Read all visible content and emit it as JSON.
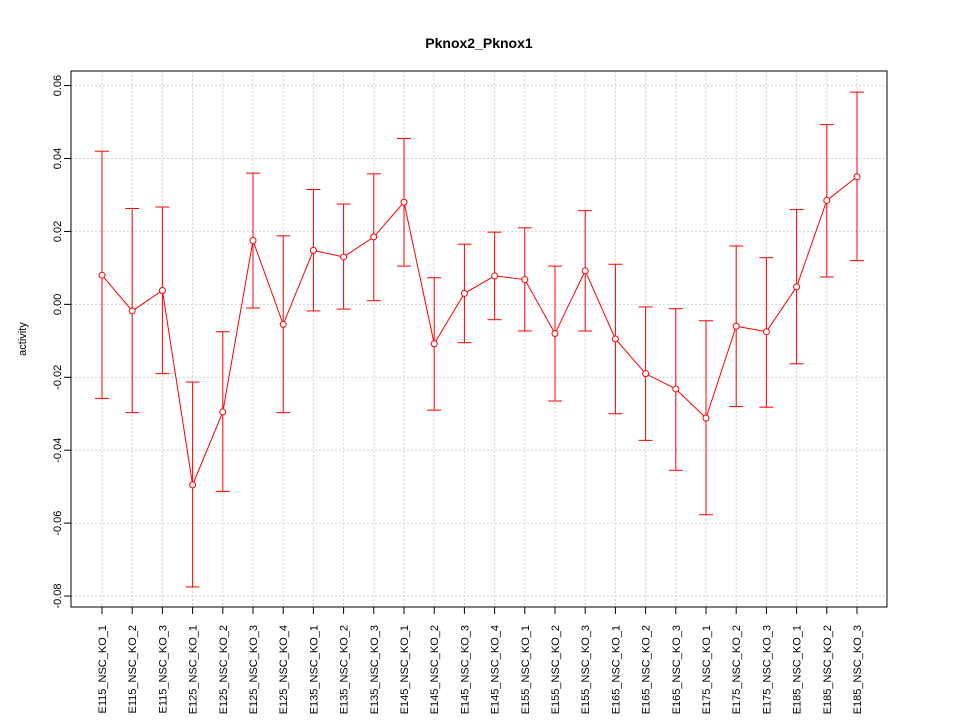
{
  "chart_data": {
    "type": "line",
    "title": "Pknox2_Pknox1",
    "xlabel": "",
    "ylabel": "activity",
    "ylim": [
      -0.083,
      0.064
    ],
    "yticks": [
      -0.08,
      -0.06,
      -0.04,
      -0.02,
      0.0,
      0.02,
      0.04,
      0.06
    ],
    "ytick_labels": [
      "-0.08",
      "-0.06",
      "-0.04",
      "-0.02",
      "0.00",
      "0.02",
      "0.04",
      "0.06"
    ],
    "grid": true,
    "categories": [
      "E115_NSC_KO_1",
      "E115_NSC_KO_2",
      "E115_NSC_KO_3",
      "E125_NSC_KO_1",
      "E125_NSC_KO_2",
      "E125_NSC_KO_3",
      "E125_NSC_KO_4",
      "E135_NSC_KO_1",
      "E135_NSC_KO_2",
      "E135_NSC_KO_3",
      "E145_NSC_KO_1",
      "E145_NSC_KO_2",
      "E145_NSC_KO_3",
      "E145_NSC_KO_4",
      "E155_NSC_KO_1",
      "E155_NSC_KO_2",
      "E155_NSC_KO_3",
      "E165_NSC_KO_1",
      "E165_NSC_KO_2",
      "E165_NSC_KO_3",
      "E175_NSC_KO_1",
      "E175_NSC_KO_2",
      "E175_NSC_KO_3",
      "E185_NSC_KO_1",
      "E185_NSC_KO_2",
      "E185_NSC_KO_3"
    ],
    "series": [
      {
        "color": "#ff0000",
        "values": [
          0.008,
          -0.0018,
          0.0038,
          -0.0495,
          -0.0295,
          0.0175,
          -0.0055,
          0.0148,
          0.013,
          0.0185,
          0.028,
          -0.0108,
          0.003,
          0.0078,
          0.0068,
          -0.008,
          0.0092,
          -0.0095,
          -0.019,
          -0.0232,
          -0.0312,
          -0.006,
          -0.0075,
          0.0048,
          0.0285,
          0.035
        ],
        "upper": [
          0.042,
          0.0263,
          0.0267,
          -0.0213,
          -0.0075,
          0.036,
          0.0188,
          0.0315,
          0.0275,
          0.0358,
          0.0455,
          0.0073,
          0.0165,
          0.0198,
          0.021,
          0.0105,
          0.0257,
          0.011,
          -0.0007,
          -0.0012,
          -0.0045,
          0.016,
          0.0128,
          0.026,
          0.0493,
          0.0582
        ],
        "lower": [
          -0.0258,
          -0.0297,
          -0.019,
          -0.0775,
          -0.0513,
          -0.001,
          -0.0297,
          -0.0018,
          -0.0013,
          0.001,
          0.0105,
          -0.029,
          -0.0105,
          -0.0042,
          -0.0073,
          -0.0265,
          -0.0073,
          -0.03,
          -0.0373,
          -0.0455,
          -0.0577,
          -0.028,
          -0.0282,
          -0.0163,
          0.0075,
          0.012
        ]
      }
    ]
  }
}
